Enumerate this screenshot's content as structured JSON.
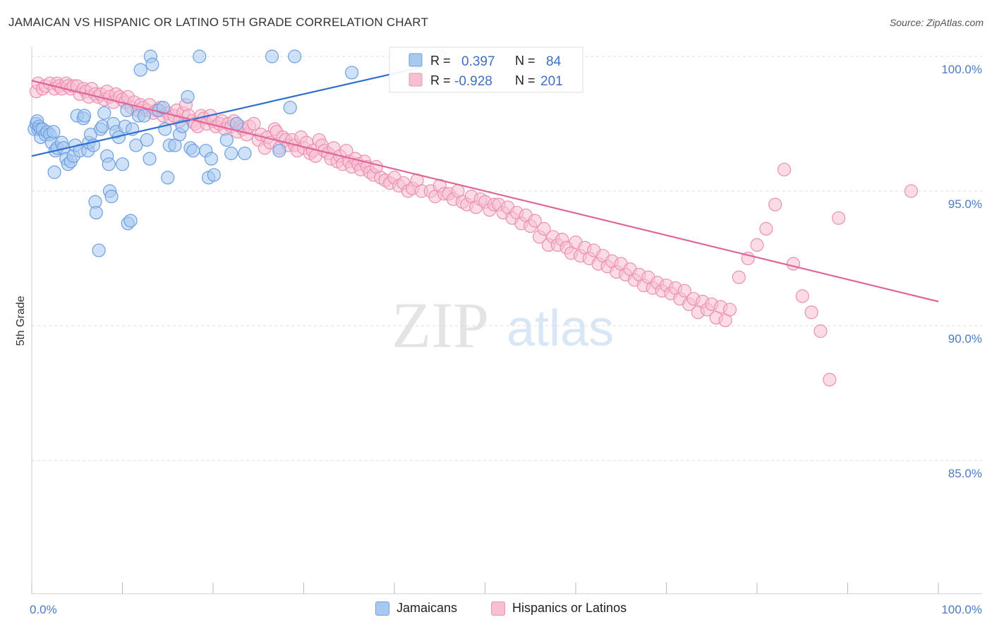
{
  "header": {
    "title": "JAMAICAN VS HISPANIC OR LATINO 5TH GRADE CORRELATION CHART",
    "source": "Source: ZipAtlas.com"
  },
  "watermark": {
    "zip": "ZIP",
    "atlas": "atlas"
  },
  "legend": {
    "rows": [
      {
        "r_label": "R =",
        "r_value": "0.397",
        "n_label": "N =",
        "n_value": "84"
      },
      {
        "r_label": "R =",
        "r_value": "-0.928",
        "n_label": "N =",
        "n_value": "201"
      }
    ]
  },
  "bottom_legend": {
    "items": [
      "Jamaicans",
      "Hispanics or Latinos"
    ]
  },
  "colors": {
    "blue_fill": "#a8c8f0",
    "blue_stroke": "#6d9fe0",
    "blue_line": "#2e6fcf",
    "pink_fill": "#f7c0d2",
    "pink_stroke": "#ec8fb0",
    "pink_line": "#e0659a",
    "tick_text": "#4a7cc7",
    "grid": "#dddddd"
  },
  "chart_data": {
    "type": "scatter",
    "title": "JAMAICAN VS HISPANIC OR LATINO 5TH GRADE CORRELATION CHART",
    "xlabel": "",
    "ylabel": "5th Grade",
    "x_tick_labels": [
      "0.0%",
      "100.0%"
    ],
    "y_tick_labels": [
      "100.0%",
      "95.0%",
      "90.0%",
      "85.0%"
    ],
    "xlim": [
      0,
      100
    ],
    "ylim": [
      80.5,
      100.5
    ],
    "y_ticks": [
      100,
      95,
      90,
      85
    ],
    "grid": "horizontal dashed",
    "legend_position": "top-center",
    "series": [
      {
        "name": "Jamaicans",
        "r": 0.397,
        "n": 84,
        "trend": {
          "x": [
            0,
            43
          ],
          "y": [
            96.3,
            99.6
          ]
        },
        "points": [
          [
            0.3,
            97.3
          ],
          [
            0.5,
            97.5
          ],
          [
            0.6,
            97.6
          ],
          [
            0.7,
            97.3
          ],
          [
            0.8,
            97.4
          ],
          [
            1.0,
            97.3
          ],
          [
            1.0,
            97.0
          ],
          [
            1.2,
            97.3
          ],
          [
            1.5,
            97.1
          ],
          [
            1.7,
            97.2
          ],
          [
            2.0,
            97.1
          ],
          [
            2.2,
            96.8
          ],
          [
            2.4,
            97.2
          ],
          [
            2.5,
            95.7
          ],
          [
            2.6,
            96.5
          ],
          [
            2.8,
            96.6
          ],
          [
            3.3,
            96.8
          ],
          [
            3.5,
            96.6
          ],
          [
            3.8,
            96.2
          ],
          [
            4.0,
            96.0
          ],
          [
            4.3,
            96.1
          ],
          [
            4.6,
            96.3
          ],
          [
            4.8,
            96.7
          ],
          [
            5.0,
            97.8
          ],
          [
            5.3,
            96.5
          ],
          [
            5.7,
            97.7
          ],
          [
            5.8,
            97.8
          ],
          [
            6.2,
            96.5
          ],
          [
            6.3,
            96.8
          ],
          [
            6.5,
            97.1
          ],
          [
            6.8,
            96.7
          ],
          [
            7.0,
            94.6
          ],
          [
            7.1,
            94.2
          ],
          [
            7.4,
            92.8
          ],
          [
            7.6,
            97.3
          ],
          [
            7.8,
            97.4
          ],
          [
            8.0,
            97.9
          ],
          [
            8.3,
            96.3
          ],
          [
            8.5,
            96.0
          ],
          [
            8.6,
            95.0
          ],
          [
            8.8,
            94.8
          ],
          [
            9.0,
            97.5
          ],
          [
            9.3,
            97.2
          ],
          [
            9.6,
            97.0
          ],
          [
            10.0,
            96.0
          ],
          [
            10.3,
            97.4
          ],
          [
            10.5,
            98.0
          ],
          [
            10.6,
            93.8
          ],
          [
            10.9,
            93.9
          ],
          [
            11.1,
            97.3
          ],
          [
            11.5,
            96.7
          ],
          [
            11.8,
            97.8
          ],
          [
            12.0,
            99.5
          ],
          [
            12.4,
            97.8
          ],
          [
            12.7,
            96.9
          ],
          [
            13.0,
            96.2
          ],
          [
            13.1,
            100.0
          ],
          [
            13.3,
            99.7
          ],
          [
            14.0,
            98.0
          ],
          [
            14.5,
            98.1
          ],
          [
            14.7,
            97.3
          ],
          [
            15.0,
            95.5
          ],
          [
            15.2,
            96.7
          ],
          [
            15.8,
            96.7
          ],
          [
            16.3,
            97.1
          ],
          [
            16.6,
            97.4
          ],
          [
            17.2,
            98.5
          ],
          [
            17.5,
            96.6
          ],
          [
            17.8,
            96.5
          ],
          [
            18.5,
            100.0
          ],
          [
            19.2,
            96.5
          ],
          [
            19.5,
            95.5
          ],
          [
            19.8,
            96.2
          ],
          [
            20.1,
            95.6
          ],
          [
            21.5,
            96.9
          ],
          [
            22.0,
            96.4
          ],
          [
            22.6,
            97.5
          ],
          [
            23.5,
            96.4
          ],
          [
            26.5,
            100.0
          ],
          [
            27.3,
            96.5
          ],
          [
            28.5,
            98.1
          ],
          [
            29.0,
            100.0
          ],
          [
            35.3,
            99.4
          ],
          [
            45.0,
            100.0
          ]
        ]
      },
      {
        "name": "Hispanics or Latinos",
        "r": -0.928,
        "n": 201,
        "trend": {
          "x": [
            0,
            100
          ],
          "y": [
            99.1,
            90.9
          ]
        },
        "points": [
          [
            0.5,
            98.7
          ],
          [
            0.7,
            99.0
          ],
          [
            1.2,
            98.8
          ],
          [
            1.5,
            98.9
          ],
          [
            2.0,
            99.0
          ],
          [
            2.5,
            98.8
          ],
          [
            2.8,
            99.0
          ],
          [
            3.0,
            98.9
          ],
          [
            3.3,
            98.8
          ],
          [
            3.8,
            99.0
          ],
          [
            4.0,
            98.9
          ],
          [
            4.3,
            98.8
          ],
          [
            4.6,
            98.9
          ],
          [
            5.0,
            98.9
          ],
          [
            5.3,
            98.6
          ],
          [
            5.7,
            98.8
          ],
          [
            6.0,
            98.7
          ],
          [
            6.3,
            98.5
          ],
          [
            6.6,
            98.8
          ],
          [
            7.0,
            98.6
          ],
          [
            7.3,
            98.5
          ],
          [
            7.6,
            98.6
          ],
          [
            8.0,
            98.4
          ],
          [
            8.3,
            98.7
          ],
          [
            8.6,
            98.5
          ],
          [
            9.0,
            98.3
          ],
          [
            9.3,
            98.6
          ],
          [
            9.7,
            98.5
          ],
          [
            10.0,
            98.4
          ],
          [
            10.3,
            98.3
          ],
          [
            10.6,
            98.5
          ],
          [
            11.0,
            98.1
          ],
          [
            11.3,
            98.3
          ],
          [
            11.7,
            98.0
          ],
          [
            12.0,
            98.2
          ],
          [
            12.3,
            98.1
          ],
          [
            12.7,
            98.0
          ],
          [
            13.0,
            98.2
          ],
          [
            13.4,
            97.9
          ],
          [
            13.8,
            98.0
          ],
          [
            14.2,
            98.1
          ],
          [
            14.5,
            97.8
          ],
          [
            15.0,
            97.9
          ],
          [
            15.3,
            97.7
          ],
          [
            15.7,
            97.8
          ],
          [
            16.0,
            98.0
          ],
          [
            16.3,
            97.6
          ],
          [
            16.7,
            97.9
          ],
          [
            17.0,
            98.2
          ],
          [
            17.3,
            97.8
          ],
          [
            17.7,
            97.6
          ],
          [
            18.0,
            97.5
          ],
          [
            18.3,
            97.4
          ],
          [
            18.7,
            97.8
          ],
          [
            19.0,
            97.7
          ],
          [
            19.3,
            97.5
          ],
          [
            19.7,
            97.8
          ],
          [
            20.0,
            97.6
          ],
          [
            20.3,
            97.4
          ],
          [
            20.7,
            97.5
          ],
          [
            21.0,
            97.6
          ],
          [
            21.3,
            97.3
          ],
          [
            21.7,
            97.5
          ],
          [
            22.0,
            97.4
          ],
          [
            22.3,
            97.6
          ],
          [
            22.7,
            97.2
          ],
          [
            23.0,
            97.4
          ],
          [
            23.3,
            97.3
          ],
          [
            23.7,
            97.1
          ],
          [
            24.0,
            97.4
          ],
          [
            24.5,
            97.5
          ],
          [
            25.0,
            96.9
          ],
          [
            25.3,
            97.1
          ],
          [
            25.7,
            96.6
          ],
          [
            26.0,
            97.0
          ],
          [
            26.3,
            96.8
          ],
          [
            26.8,
            97.3
          ],
          [
            27.0,
            97.2
          ],
          [
            27.3,
            96.6
          ],
          [
            27.7,
            97.0
          ],
          [
            28.0,
            96.9
          ],
          [
            28.3,
            96.7
          ],
          [
            28.7,
            96.9
          ],
          [
            29.0,
            96.7
          ],
          [
            29.3,
            96.5
          ],
          [
            29.7,
            97.0
          ],
          [
            30.0,
            96.6
          ],
          [
            30.3,
            96.8
          ],
          [
            30.7,
            96.4
          ],
          [
            31.0,
            96.5
          ],
          [
            31.3,
            96.3
          ],
          [
            31.7,
            96.9
          ],
          [
            32.0,
            96.7
          ],
          [
            32.3,
            96.5
          ],
          [
            32.7,
            96.4
          ],
          [
            33.0,
            96.2
          ],
          [
            33.3,
            96.6
          ],
          [
            33.7,
            96.1
          ],
          [
            34.0,
            96.3
          ],
          [
            34.3,
            96.0
          ],
          [
            34.7,
            96.5
          ],
          [
            35.0,
            96.1
          ],
          [
            35.3,
            95.9
          ],
          [
            35.7,
            96.2
          ],
          [
            36.0,
            96.0
          ],
          [
            36.3,
            95.8
          ],
          [
            36.7,
            96.1
          ],
          [
            37.0,
            95.9
          ],
          [
            37.3,
            95.7
          ],
          [
            37.7,
            95.6
          ],
          [
            38.0,
            95.9
          ],
          [
            38.5,
            95.5
          ],
          [
            39.0,
            95.4
          ],
          [
            39.5,
            95.3
          ],
          [
            40.0,
            95.5
          ],
          [
            40.5,
            95.2
          ],
          [
            41.0,
            95.3
          ],
          [
            41.5,
            95.0
          ],
          [
            42.0,
            95.1
          ],
          [
            42.5,
            95.4
          ],
          [
            43.0,
            95.0
          ],
          [
            44.0,
            95.0
          ],
          [
            44.5,
            94.8
          ],
          [
            45.0,
            95.2
          ],
          [
            45.5,
            94.9
          ],
          [
            46.0,
            94.9
          ],
          [
            46.5,
            94.7
          ],
          [
            47.0,
            95.0
          ],
          [
            47.5,
            94.6
          ],
          [
            48.0,
            94.5
          ],
          [
            48.5,
            94.8
          ],
          [
            49.0,
            94.4
          ],
          [
            49.5,
            94.7
          ],
          [
            50.0,
            94.6
          ],
          [
            50.5,
            94.3
          ],
          [
            51.0,
            94.5
          ],
          [
            51.5,
            94.5
          ],
          [
            52.0,
            94.2
          ],
          [
            52.5,
            94.4
          ],
          [
            53.0,
            94.0
          ],
          [
            53.5,
            94.2
          ],
          [
            54.0,
            93.8
          ],
          [
            54.5,
            94.1
          ],
          [
            55.0,
            93.7
          ],
          [
            55.5,
            93.9
          ],
          [
            56.0,
            93.3
          ],
          [
            56.5,
            93.6
          ],
          [
            57.0,
            93.0
          ],
          [
            57.5,
            93.3
          ],
          [
            58.0,
            93.0
          ],
          [
            58.5,
            93.2
          ],
          [
            59.0,
            92.9
          ],
          [
            59.5,
            92.7
          ],
          [
            60.0,
            93.1
          ],
          [
            60.5,
            92.6
          ],
          [
            61.0,
            92.9
          ],
          [
            61.5,
            92.5
          ],
          [
            62.0,
            92.8
          ],
          [
            62.5,
            92.3
          ],
          [
            63.0,
            92.6
          ],
          [
            63.5,
            92.2
          ],
          [
            64.0,
            92.4
          ],
          [
            64.5,
            92.0
          ],
          [
            65.0,
            92.3
          ],
          [
            65.5,
            91.9
          ],
          [
            66.0,
            92.1
          ],
          [
            66.5,
            91.7
          ],
          [
            67.0,
            91.9
          ],
          [
            67.5,
            91.5
          ],
          [
            68.0,
            91.8
          ],
          [
            68.5,
            91.4
          ],
          [
            69.0,
            91.6
          ],
          [
            69.5,
            91.3
          ],
          [
            70.0,
            91.5
          ],
          [
            70.5,
            91.2
          ],
          [
            71.0,
            91.4
          ],
          [
            71.5,
            91.0
          ],
          [
            72.0,
            91.3
          ],
          [
            72.5,
            90.8
          ],
          [
            73.0,
            91.0
          ],
          [
            73.5,
            90.5
          ],
          [
            74.0,
            90.9
          ],
          [
            74.5,
            90.6
          ],
          [
            75.0,
            90.8
          ],
          [
            75.5,
            90.3
          ],
          [
            76.0,
            90.7
          ],
          [
            76.5,
            90.2
          ],
          [
            77.0,
            90.6
          ],
          [
            78.0,
            91.8
          ],
          [
            79.0,
            92.5
          ],
          [
            80.0,
            93.0
          ],
          [
            81.0,
            93.6
          ],
          [
            82.0,
            94.5
          ],
          [
            83.0,
            95.8
          ],
          [
            84.0,
            92.3
          ],
          [
            85.0,
            91.1
          ],
          [
            86.0,
            90.5
          ],
          [
            87.0,
            89.8
          ],
          [
            88.0,
            88.0
          ],
          [
            89.0,
            94.0
          ],
          [
            97.0,
            95.0
          ]
        ]
      }
    ]
  }
}
